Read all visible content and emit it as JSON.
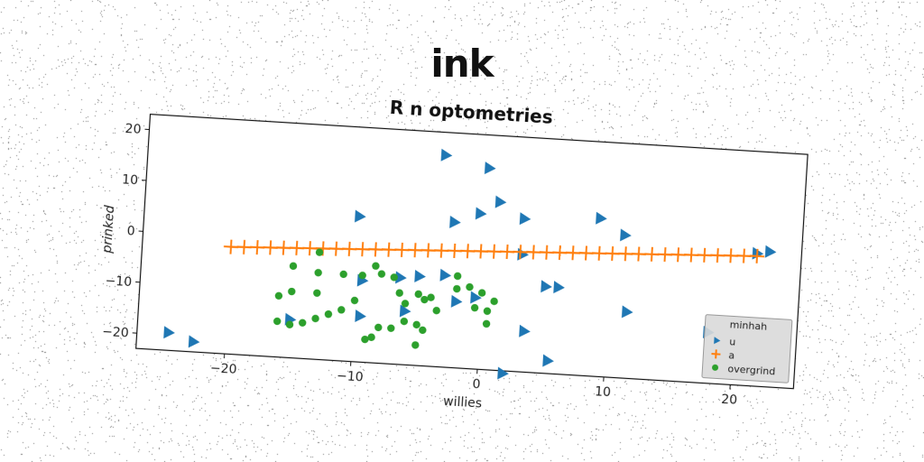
{
  "suptitle": "ink",
  "chart_data": {
    "type": "scatter",
    "title": "R n optometries",
    "xlabel": "willies",
    "ylabel": "prinked",
    "xlim": [
      -27,
      25
    ],
    "ylim": [
      -23,
      23
    ],
    "xticks": [
      -20,
      -10,
      0,
      10,
      20
    ],
    "yticks": [
      -20,
      -10,
      0,
      10,
      20
    ],
    "grid": false,
    "legend": {
      "title": "minhah",
      "position": "lower-right"
    },
    "series": [
      {
        "name": "u",
        "marker": "triangle-right",
        "color": "#1f77b4",
        "points": [
          [
            -24.5,
            -19.5
          ],
          [
            -22.5,
            -21
          ],
          [
            -3.5,
            18.5
          ],
          [
            0,
            16.5
          ],
          [
            1,
            10
          ],
          [
            3,
            7
          ],
          [
            9,
            8
          ],
          [
            11,
            5
          ],
          [
            -10,
            5.5
          ],
          [
            -2.5,
            5.5
          ],
          [
            -0.5,
            7.5
          ],
          [
            -9.5,
            -7
          ],
          [
            -6.5,
            -6
          ],
          [
            -5,
            -5.5
          ],
          [
            -3,
            -5
          ],
          [
            -2,
            -10
          ],
          [
            -0.5,
            -9
          ],
          [
            -6,
            -12.5
          ],
          [
            -9.5,
            -14
          ],
          [
            -15,
            -15.5
          ],
          [
            3,
            0
          ],
          [
            5,
            -6
          ],
          [
            6,
            -6
          ],
          [
            3.5,
            -15
          ],
          [
            5.5,
            -20.5
          ],
          [
            2,
            -23.5
          ],
          [
            11.5,
            -10
          ],
          [
            18,
            -13
          ],
          [
            21.5,
            3
          ],
          [
            22.5,
            3.5
          ]
        ]
      },
      {
        "name": "a",
        "marker": "plus",
        "color": "#ff7f0e",
        "line_from": [
          -20,
          -2
        ],
        "line_to": [
          21.5,
          2.5
        ]
      },
      {
        "name": "overgrind",
        "marker": "circle",
        "color": "#2ca02c",
        "points": [
          [
            -13,
            -2
          ],
          [
            -15,
            -5
          ],
          [
            -13,
            -6
          ],
          [
            -11,
            -6
          ],
          [
            -9.5,
            -6
          ],
          [
            -8.5,
            -4
          ],
          [
            -16,
            -11
          ],
          [
            -15,
            -10
          ],
          [
            -13,
            -10
          ],
          [
            -11,
            -13
          ],
          [
            -10,
            -11
          ],
          [
            -12,
            -14
          ],
          [
            -13,
            -15
          ],
          [
            -14,
            -16
          ],
          [
            -16,
            -16
          ],
          [
            -15,
            -16.5
          ],
          [
            -8,
            -16
          ],
          [
            -8.5,
            -18
          ],
          [
            -9,
            -18.5
          ],
          [
            -7,
            -16
          ],
          [
            -6,
            -14.5
          ],
          [
            -5,
            -15
          ],
          [
            -4.5,
            -16
          ],
          [
            -5,
            -19
          ],
          [
            -6,
            -11
          ],
          [
            -5,
            -9
          ],
          [
            -4,
            -9.5
          ],
          [
            -3.5,
            -12
          ],
          [
            -2,
            -5
          ],
          [
            -1,
            -7
          ],
          [
            0,
            -8
          ],
          [
            -0.5,
            -11
          ],
          [
            0.5,
            -11.5
          ],
          [
            1,
            -9.5
          ],
          [
            0.5,
            -14
          ],
          [
            -4.5,
            -10
          ],
          [
            -7,
            -6
          ],
          [
            -8,
            -5.5
          ],
          [
            -6.5,
            -9
          ],
          [
            -2,
            -7.5
          ]
        ]
      }
    ]
  }
}
